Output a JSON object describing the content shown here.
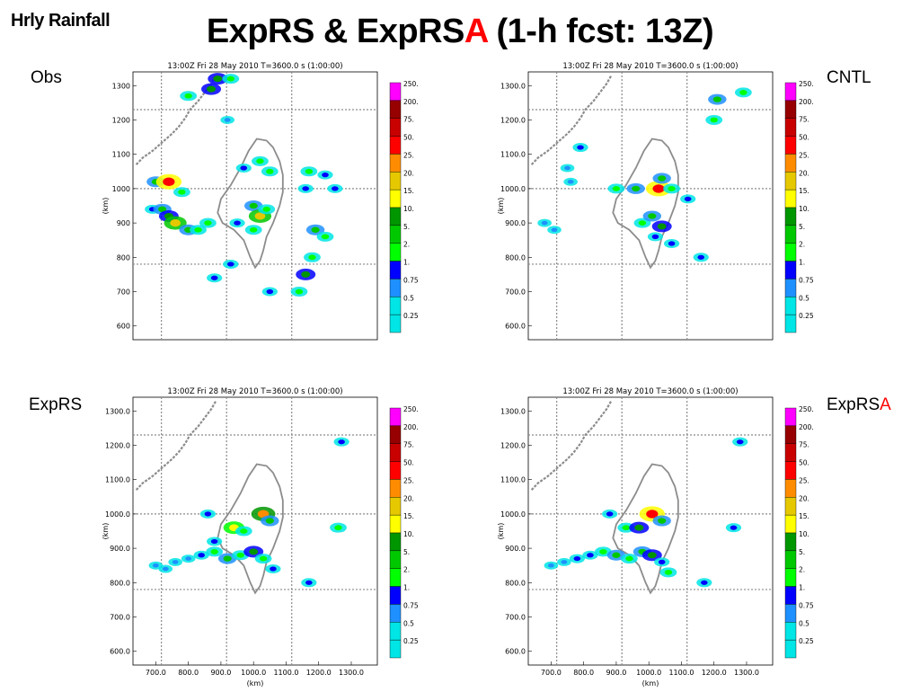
{
  "corner_title": "Hrly Rainfall",
  "title_main": "ExpRS & ExpRS",
  "title_accent": "A",
  "title_tail": " (1-h fcst: 13Z)",
  "colors": {
    "accent": "#ff0000",
    "coast": "#8c8c8c",
    "grid": "#8a8a8a",
    "scale": [
      "#00e5e5",
      "#1e90ff",
      "#0000ff",
      "#00ff00",
      "#00c800",
      "#009600",
      "#ffff00",
      "#e6c800",
      "#ff8c00",
      "#ff0000",
      "#c80000",
      "#960000",
      "#ff00ff"
    ]
  },
  "panels": [
    {
      "label": "Obs",
      "label_accent": "",
      "header": "13:00Z  Fri  28  May  2010      T=3600.0  s  (1:00:00)",
      "y_tick_labels": [
        "1300",
        "1200",
        "1100",
        "1000",
        "900",
        "800",
        "700",
        "600"
      ],
      "x_tick_labels": [],
      "xlabel": "",
      "ylabel": "(km)"
    },
    {
      "label": "CNTL",
      "label_accent": "",
      "header": "13:00Z  Fri  28  May  2010      T=3600.0  s  (1:00:00)",
      "y_tick_labels": [
        "1300.0",
        "1200.0",
        "1100.0",
        "1000.0",
        "900.0",
        "800.0",
        "700.0",
        "600.0"
      ],
      "x_tick_labels": [],
      "xlabel": "",
      "ylabel": "(km)"
    },
    {
      "label": "ExpRS",
      "label_accent": "",
      "header": "13:00Z  Fri  28  May  2010      T=3600.0  s  (1:00:00)",
      "y_tick_labels": [
        "1300.0",
        "1200.0",
        "1100.0",
        "1000.0",
        "900.0",
        "800.0",
        "700.0",
        "600.0"
      ],
      "x_tick_labels": [
        "700.0",
        "800.0",
        "900.0",
        "1000.0",
        "1100.0",
        "1200.0",
        "1300.0"
      ],
      "xlabel": "(km)",
      "ylabel": "(km)"
    },
    {
      "label": "ExpRS",
      "label_accent": "A",
      "header": "13:00Z  Fri  28  May  2010      T=3600.0  s  (1:00:00)",
      "y_tick_labels": [
        "1300.0",
        "1200.0",
        "1100.0",
        "1000.0",
        "900.0",
        "800.0",
        "700.0",
        "600.0"
      ],
      "x_tick_labels": [
        "700.0",
        "800.0",
        "900.0",
        "1000.0",
        "1100.0",
        "1200.0",
        "1300.0"
      ],
      "xlabel": "(km)",
      "ylabel": "(km)"
    }
  ],
  "colorbar_labels": [
    "250.",
    "200.",
    "75.",
    "50.",
    "25.",
    "20.",
    "15.",
    "10.",
    "5.",
    "2.",
    "1.",
    "0.75",
    "0.5",
    "0.25"
  ],
  "chart_data": [
    {
      "type": "heatmap",
      "name": "Obs",
      "title": "13:00Z Fri 28 May 2010 T=3600.0 s (1:00:00)",
      "ylabel": "(km)",
      "xlabel": "",
      "xlim": [
        630,
        1380
      ],
      "ylim": [
        560,
        1340
      ],
      "levels": [
        0.25,
        0.5,
        0.75,
        1,
        2,
        5,
        10,
        15,
        20,
        25,
        50,
        75,
        200,
        250
      ],
      "grid": true,
      "cells": [
        [
          890,
          1320,
          5
        ],
        [
          930,
          1320,
          3
        ],
        [
          870,
          1290,
          5
        ],
        [
          800,
          1270,
          3
        ],
        [
          920,
          1200,
          1
        ],
        [
          700,
          1020,
          4
        ],
        [
          740,
          1020,
          9
        ],
        [
          780,
          990,
          3
        ],
        [
          690,
          940,
          2
        ],
        [
          720,
          940,
          4
        ],
        [
          740,
          920,
          5
        ],
        [
          760,
          900,
          7
        ],
        [
          800,
          880,
          4
        ],
        [
          830,
          880,
          3
        ],
        [
          860,
          900,
          3
        ],
        [
          1000,
          950,
          4
        ],
        [
          1020,
          920,
          7
        ],
        [
          1040,
          940,
          3
        ],
        [
          1000,
          880,
          3
        ],
        [
          950,
          900,
          2
        ],
        [
          970,
          1060,
          2
        ],
        [
          1020,
          1080,
          3
        ],
        [
          1050,
          1050,
          3
        ],
        [
          1170,
          1050,
          3
        ],
        [
          1160,
          1000,
          2
        ],
        [
          1220,
          1040,
          2
        ],
        [
          1250,
          1000,
          2
        ],
        [
          1190,
          880,
          4
        ],
        [
          1220,
          860,
          3
        ],
        [
          1180,
          800,
          3
        ],
        [
          1160,
          750,
          5
        ],
        [
          1140,
          700,
          3
        ],
        [
          1050,
          700,
          2
        ],
        [
          930,
          780,
          2
        ],
        [
          880,
          740,
          2
        ]
      ]
    },
    {
      "type": "heatmap",
      "name": "CNTL",
      "title": "13:00Z Fri 28 May 2010 T=3600.0 s (1:00:00)",
      "ylabel": "(km)",
      "xlabel": "",
      "xlim": [
        630,
        1380
      ],
      "ylim": [
        560,
        1340
      ],
      "levels": [
        0.25,
        0.5,
        0.75,
        1,
        2,
        5,
        10,
        15,
        20,
        25,
        50,
        75,
        200,
        250
      ],
      "grid": true,
      "cells": [
        [
          750,
          1060,
          1
        ],
        [
          760,
          1020,
          1
        ],
        [
          790,
          1120,
          2
        ],
        [
          900,
          1000,
          3
        ],
        [
          960,
          1000,
          4
        ],
        [
          1030,
          1000,
          9
        ],
        [
          1040,
          1030,
          4
        ],
        [
          1070,
          1000,
          3
        ],
        [
          1120,
          970,
          2
        ],
        [
          980,
          900,
          3
        ],
        [
          1010,
          920,
          4
        ],
        [
          1040,
          890,
          5
        ],
        [
          1020,
          860,
          2
        ],
        [
          1070,
          840,
          2
        ],
        [
          1160,
          800,
          2
        ],
        [
          1200,
          1200,
          3
        ],
        [
          1210,
          1260,
          4
        ],
        [
          1290,
          1280,
          3
        ],
        [
          710,
          880,
          1
        ],
        [
          680,
          900,
          1
        ]
      ]
    },
    {
      "type": "heatmap",
      "name": "ExpRS",
      "title": "13:00Z Fri 28 May 2010 T=3600.0 s (1:00:00)",
      "ylabel": "(km)",
      "xlabel": "(km)",
      "xlim": [
        630,
        1380
      ],
      "ylim": [
        560,
        1340
      ],
      "levels": [
        0.25,
        0.5,
        0.75,
        1,
        2,
        5,
        10,
        15,
        20,
        25,
        50,
        75,
        200,
        250
      ],
      "grid": true,
      "cells": [
        [
          700,
          850,
          1
        ],
        [
          730,
          840,
          1
        ],
        [
          760,
          860,
          1
        ],
        [
          800,
          870,
          1
        ],
        [
          840,
          880,
          2
        ],
        [
          880,
          890,
          3
        ],
        [
          920,
          870,
          4
        ],
        [
          960,
          880,
          3
        ],
        [
          1000,
          890,
          5
        ],
        [
          1030,
          870,
          3
        ],
        [
          1060,
          840,
          2
        ],
        [
          940,
          960,
          6
        ],
        [
          970,
          950,
          3
        ],
        [
          1030,
          1000,
          8
        ],
        [
          1050,
          980,
          4
        ],
        [
          1170,
          800,
          2
        ],
        [
          1260,
          960,
          3
        ],
        [
          1270,
          1210,
          2
        ],
        [
          860,
          1000,
          2
        ],
        [
          880,
          920,
          2
        ]
      ]
    },
    {
      "type": "heatmap",
      "name": "ExpRSA",
      "title": "13:00Z Fri 28 May 2010 T=3600.0 s (1:00:00)",
      "ylabel": "(km)",
      "xlabel": "(km)",
      "xlim": [
        630,
        1380
      ],
      "ylim": [
        560,
        1340
      ],
      "levels": [
        0.25,
        0.5,
        0.75,
        1,
        2,
        5,
        10,
        15,
        20,
        25,
        50,
        75,
        200,
        250
      ],
      "grid": true,
      "cells": [
        [
          700,
          850,
          1
        ],
        [
          740,
          860,
          1
        ],
        [
          780,
          870,
          2
        ],
        [
          820,
          880,
          2
        ],
        [
          860,
          890,
          3
        ],
        [
          900,
          880,
          4
        ],
        [
          940,
          870,
          3
        ],
        [
          980,
          890,
          4
        ],
        [
          1010,
          880,
          5
        ],
        [
          1040,
          860,
          2
        ],
        [
          1060,
          830,
          3
        ],
        [
          930,
          960,
          3
        ],
        [
          970,
          960,
          5
        ],
        [
          1010,
          1000,
          9
        ],
        [
          1040,
          980,
          4
        ],
        [
          1170,
          800,
          2
        ],
        [
          1260,
          960,
          2
        ],
        [
          1280,
          1210,
          2
        ],
        [
          880,
          1000,
          2
        ]
      ]
    }
  ]
}
